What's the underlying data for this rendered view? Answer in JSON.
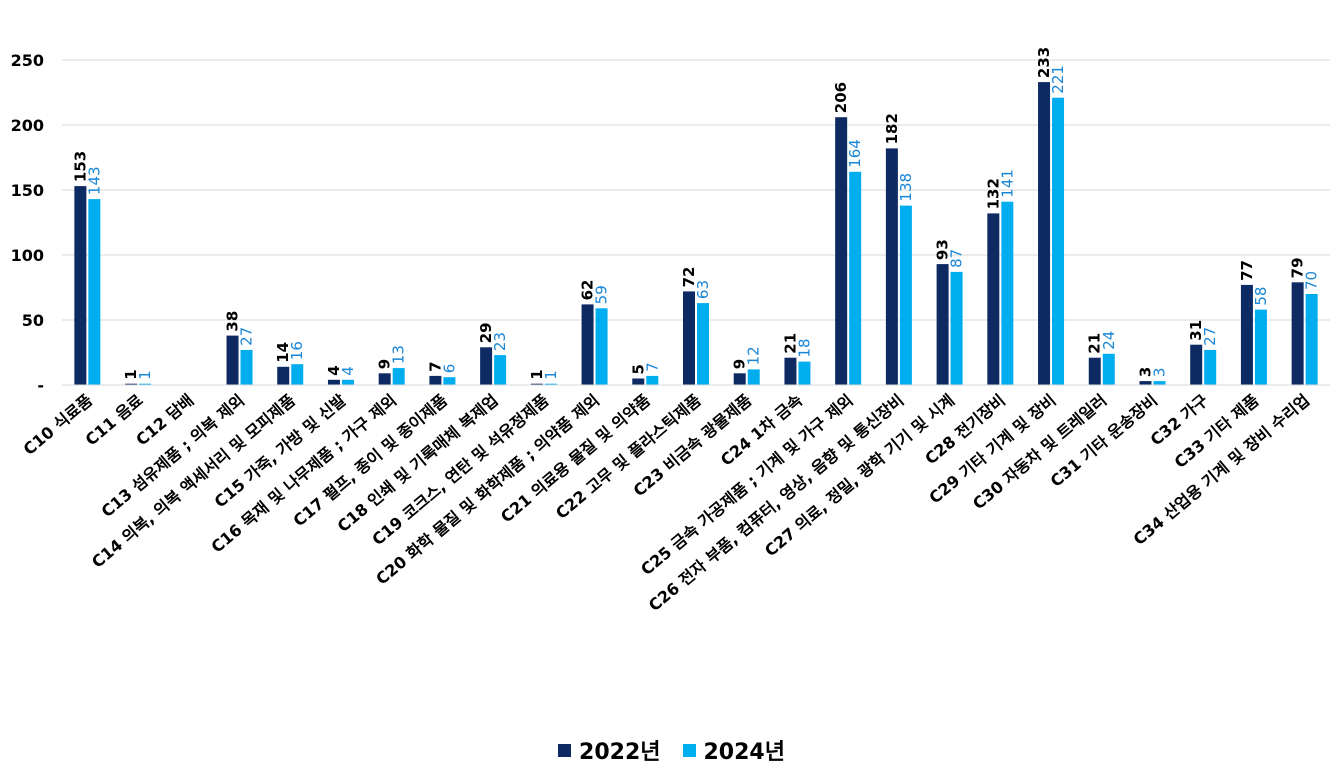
{
  "chart_data": {
    "type": "bar",
    "categories": [
      "C10 식료품",
      "C11 음료",
      "C12 담배",
      "C13 섬유제품 ; 의복 제외",
      "C14 의복, 의복 액세서리 및 모피제품",
      "C15 가죽, 가방 및 신발",
      "C16 목재 및 나무제품 ; 가구 제외",
      "C17 펄프, 종이 및 종이제품",
      "C18 인쇄 및 기록매체 복제업",
      "C19 코크스, 연탄 및 석유정제품",
      "C20 화학 물질 및 화학제품 ; 의약품 제외",
      "C21 의료용 물질 및 의약품",
      "C22 고무 및 플라스틱제품",
      "C23 비금속 광물제품",
      "C24 1차 금속",
      "C25 금속 가공제품 ; 기계 및 가구 제외",
      "C26 전자 부품, 컴퓨터, 영상, 음향 및 통신장비",
      "C27 의료, 정밀, 광학 기기 및 시계",
      "C28 전기장비",
      "C29 기타 기계 및 장비",
      "C30 자동차 및 트레일러",
      "C31 기타 운송장비",
      "C32 가구",
      "C33 기타 제품",
      "C34 산업용 기계 및 장비 수리업"
    ],
    "series": [
      {
        "name": "2022년",
        "color": "#0d2a63",
        "values": [
          153,
          1,
          null,
          38,
          14,
          4,
          9,
          7,
          29,
          1,
          62,
          5,
          72,
          9,
          21,
          206,
          182,
          93,
          132,
          233,
          21,
          3,
          31,
          77,
          79
        ]
      },
      {
        "name": "2024년",
        "color": "#00adef",
        "values": [
          143,
          1,
          null,
          27,
          16,
          4,
          13,
          6,
          23,
          1,
          59,
          7,
          63,
          12,
          18,
          164,
          138,
          87,
          141,
          221,
          24,
          3,
          27,
          58,
          70
        ]
      }
    ],
    "yticks": [
      "-",
      "50",
      "100",
      "150",
      "200",
      "250"
    ],
    "ylim": [
      0,
      250
    ],
    "grid": true,
    "legend_position": "bottom-center"
  }
}
